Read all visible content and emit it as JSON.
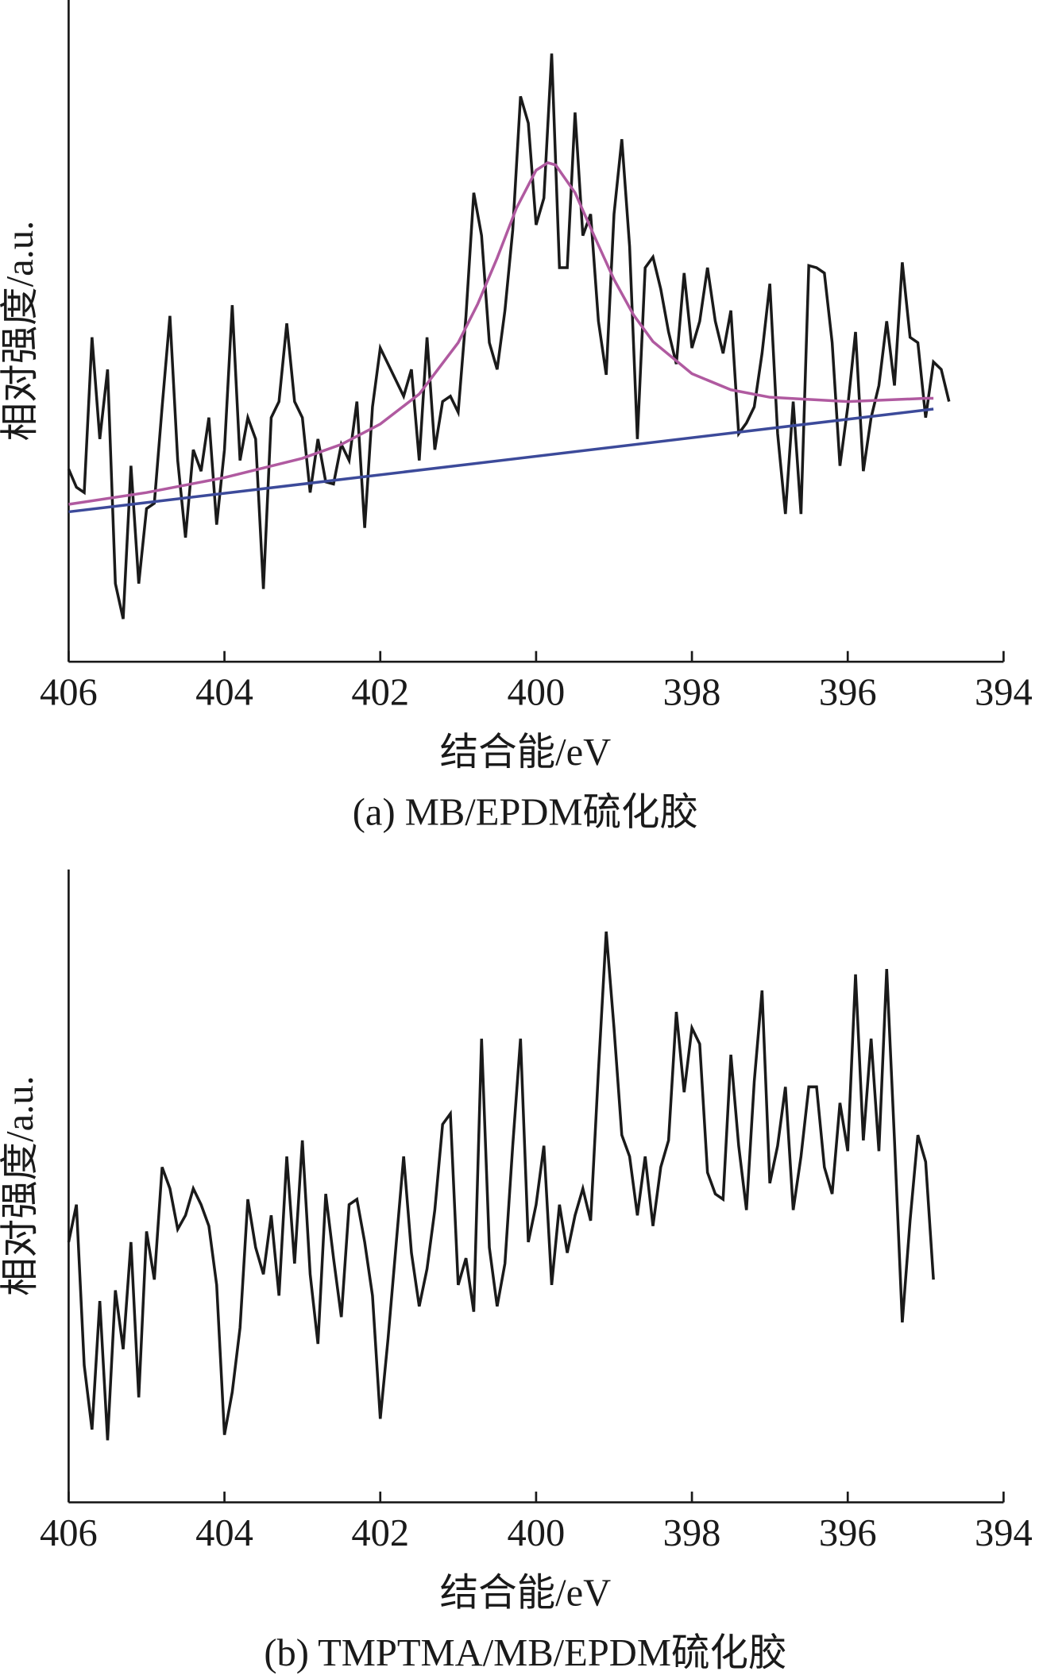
{
  "chart_data": [
    {
      "type": "line",
      "title": "(a) MB/EPDM硫化胶",
      "xlabel": "结合能/eV",
      "ylabel": "相对强度/a.u.",
      "xlim": [
        406,
        394
      ],
      "ylim": [
        0,
        618
      ],
      "xticks": [
        406,
        404,
        402,
        400,
        398,
        396,
        394
      ],
      "x": [
        406,
        405.9,
        405.8,
        405.7,
        405.6,
        405.5,
        405.4,
        405.3,
        405.2,
        405.1,
        405,
        404.9,
        404.8,
        404.7,
        404.6,
        404.5,
        404.4,
        404.3,
        404.2,
        404.1,
        404,
        403.9,
        403.8,
        403.7,
        403.6,
        403.5,
        403.4,
        403.3,
        403.2,
        403.1,
        403,
        402.9,
        402.8,
        402.7,
        402.6,
        402.5,
        402.4,
        402.3,
        402.2,
        402.1,
        402,
        401.9,
        401.8,
        401.7,
        401.6,
        401.5,
        401.4,
        401.3,
        401.2,
        401.1,
        401,
        400.9,
        400.8,
        400.7,
        400.6,
        400.5,
        400.4,
        400.3,
        400.2,
        400.1,
        400,
        399.9,
        399.8,
        399.7,
        399.6,
        399.5,
        399.4,
        399.3,
        399.2,
        399.1,
        399,
        398.9,
        398.8,
        398.7,
        398.6,
        398.5,
        398.4,
        398.3,
        398.2,
        398.1,
        398,
        397.9,
        397.8,
        397.7,
        397.6,
        397.5,
        397.4,
        397.3,
        397.2,
        397.1,
        397,
        396.9,
        396.8,
        396.7,
        396.6,
        396.5,
        396.4,
        396.3,
        396.2,
        396.1,
        396,
        395.9,
        395.8,
        395.7,
        395.6,
        395.5,
        395.4,
        395.3,
        395.2,
        395.1,
        395,
        394.9,
        394.8,
        394.7
      ],
      "series": [
        {
          "color": "#1a1a1a",
          "values": [
            180,
            163,
            158,
            303,
            208,
            273,
            73,
            40,
            183,
            73,
            143,
            148,
            238,
            323,
            188,
            116,
            198,
            178,
            228,
            128,
            198,
            333,
            188,
            228,
            208,
            68,
            228,
            243,
            316,
            243,
            228,
            158,
            208,
            168,
            166,
            203,
            188,
            243,
            125,
            238,
            293,
            278,
            263,
            248,
            273,
            188,
            303,
            198,
            243,
            248,
            233,
            323,
            438,
            398,
            298,
            273,
            328,
            403,
            528,
            503,
            408,
            433,
            568,
            368,
            368,
            513,
            398,
            418,
            318,
            268,
            418,
            488,
            388,
            208,
            368,
            378,
            348,
            308,
            278,
            363,
            293,
            318,
            368,
            318,
            288,
            328,
            213,
            223,
            238,
            288,
            353,
            213,
            138,
            243,
            138,
            370,
            368,
            363,
            298,
            183,
            238,
            308,
            178,
            228,
            258,
            318,
            258,
            373,
            303,
            298,
            228,
            280,
            273,
            243
          ]
        },
        {
          "color": "#b05aa0",
          "x": [
            406,
            405,
            404,
            403,
            402.5,
            402,
            401.5,
            401,
            400.75,
            400.5,
            400.25,
            400,
            399.85,
            399.75,
            399.5,
            399.25,
            399,
            398.75,
            398.5,
            398,
            397.5,
            397,
            396,
            395,
            394.9
          ],
          "values": [
            147,
            158,
            172,
            190,
            203,
            222,
            250,
            298,
            334,
            377,
            424,
            459,
            466,
            464,
            438,
            397,
            357,
            324,
            299,
            269,
            254,
            247,
            243,
            246,
            246
          ]
        },
        {
          "color": "#3c4a9a",
          "x": [
            406,
            394.9
          ],
          "values": [
            140,
            236
          ]
        }
      ]
    },
    {
      "type": "line",
      "title": "(b) TMPTMA/MB/EPDM硫化胶",
      "xlabel": "结合能/eV",
      "ylabel": "相对强度/a.u.",
      "xlim": [
        406,
        394
      ],
      "ylim": [
        0,
        591
      ],
      "xticks": [
        406,
        404,
        402,
        400,
        398,
        396,
        394
      ],
      "x": [
        406,
        405.9,
        405.8,
        405.7,
        405.6,
        405.5,
        405.4,
        405.3,
        405.2,
        405.1,
        405,
        404.9,
        404.8,
        404.7,
        404.6,
        404.5,
        404.4,
        404.3,
        404.2,
        404.1,
        404,
        403.9,
        403.8,
        403.7,
        403.6,
        403.5,
        403.4,
        403.3,
        403.2,
        403.1,
        403,
        402.9,
        402.8,
        402.7,
        402.6,
        402.5,
        402.4,
        402.3,
        402.2,
        402.1,
        402,
        401.9,
        401.8,
        401.7,
        401.6,
        401.5,
        401.4,
        401.3,
        401.2,
        401.1,
        401,
        400.9,
        400.8,
        400.7,
        400.6,
        400.5,
        400.4,
        400.3,
        400.2,
        400.1,
        400,
        399.9,
        399.8,
        399.7,
        399.6,
        399.5,
        399.4,
        399.3,
        399.2,
        399.1,
        399,
        398.9,
        398.8,
        398.7,
        398.6,
        398.5,
        398.4,
        398.3,
        398.2,
        398.1,
        398,
        397.9,
        397.8,
        397.7,
        397.6,
        397.5,
        397.4,
        397.3,
        397.2,
        397.1,
        397,
        396.9,
        396.8,
        396.7,
        396.6,
        396.5,
        396.4,
        396.3,
        396.2,
        396.1,
        396,
        395.9,
        395.8,
        395.7,
        395.6,
        395.5,
        395.4,
        395.3,
        395.2,
        395.1,
        395,
        394.9
      ],
      "series": [
        {
          "color": "#1a1a1a",
          "values": [
            243,
            278,
            128,
            68,
            188,
            58,
            198,
            143,
            243,
            98,
            253,
            208,
            313,
            293,
            255,
            268,
            293,
            278,
            258,
            203,
            63,
            103,
            163,
            283,
            238,
            213,
            268,
            193,
            323,
            223,
            338,
            213,
            148,
            288,
            228,
            173,
            278,
            283,
            243,
            193,
            78,
            153,
            238,
            323,
            233,
            183,
            218,
            273,
            353,
            363,
            203,
            228,
            178,
            433,
            238,
            183,
            223,
            333,
            433,
            243,
            278,
            333,
            203,
            278,
            233,
            268,
            293,
            263,
            403,
            533,
            443,
            343,
            323,
            268,
            323,
            258,
            313,
            338,
            458,
            383,
            443,
            428,
            308,
            288,
            283,
            418,
            333,
            273,
            393,
            478,
            298,
            333,
            388,
            273,
            323,
            388,
            388,
            313,
            288,
            373,
            328,
            493,
            338,
            433,
            328,
            498,
            338,
            168,
            263,
            343,
            318,
            208
          ]
        }
      ]
    }
  ]
}
